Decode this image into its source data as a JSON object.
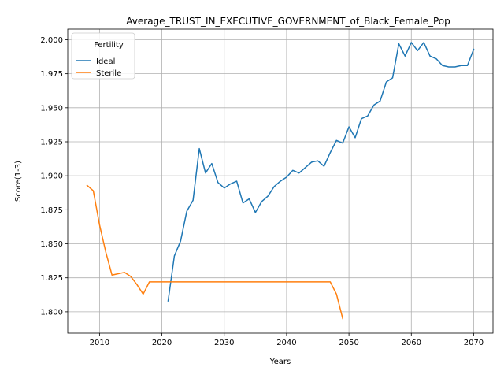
{
  "chart_data": {
    "type": "line",
    "title": "Average_TRUST_IN_EXECUTIVE_GOVERNMENT_of_Black_Female_Pop",
    "xlabel": "Years",
    "ylabel": "Score(1-3)",
    "xlim": [
      2004.9,
      2073.1
    ],
    "ylim": [
      1.7843,
      2.0078
    ],
    "xticks": [
      2010,
      2020,
      2030,
      2040,
      2050,
      2060,
      2070
    ],
    "yticks": [
      1.8,
      1.825,
      1.85,
      1.875,
      1.9,
      1.925,
      1.95,
      1.975,
      2.0
    ],
    "ytick_labels": [
      "1.800",
      "1.825",
      "1.850",
      "1.875",
      "1.900",
      "1.925",
      "1.950",
      "1.975",
      "2.000"
    ],
    "grid": true,
    "legend": {
      "title": "Fertility",
      "placement": "top-left"
    },
    "series": [
      {
        "name": "Ideal",
        "color": "#1f77b4",
        "x": [
          2021,
          2022,
          2023,
          2024,
          2025,
          2026,
          2027,
          2028,
          2029,
          2030,
          2031,
          2032,
          2033,
          2034,
          2035,
          2036,
          2037,
          2038,
          2039,
          2040,
          2041,
          2042,
          2043,
          2044,
          2045,
          2046,
          2047,
          2048,
          2049,
          2050,
          2051,
          2052,
          2053,
          2054,
          2055,
          2056,
          2057,
          2058,
          2059,
          2060,
          2061,
          2062,
          2063,
          2064,
          2065,
          2066,
          2067,
          2068,
          2069,
          2070
        ],
        "y": [
          1.808,
          1.841,
          1.852,
          1.874,
          1.882,
          1.92,
          1.902,
          1.909,
          1.895,
          1.891,
          1.894,
          1.896,
          1.88,
          1.883,
          1.873,
          1.881,
          1.885,
          1.892,
          1.896,
          1.899,
          1.904,
          1.902,
          1.906,
          1.91,
          1.911,
          1.907,
          1.917,
          1.926,
          1.924,
          1.936,
          1.928,
          1.942,
          1.944,
          1.952,
          1.955,
          1.969,
          1.972,
          1.997,
          1.988,
          1.998,
          1.992,
          1.998,
          1.988,
          1.986,
          1.981,
          1.98,
          1.98,
          1.981,
          1.981,
          1.993
        ]
      },
      {
        "name": "Sterile",
        "color": "#ff7f0e",
        "x": [
          2008,
          2009,
          2010,
          2011,
          2012,
          2013,
          2014,
          2015,
          2016,
          2017,
          2018,
          2019,
          2020,
          2025,
          2030,
          2035,
          2040,
          2045,
          2046,
          2047,
          2048,
          2049
        ],
        "y": [
          1.893,
          1.889,
          1.864,
          1.844,
          1.827,
          1.828,
          1.829,
          1.826,
          1.82,
          1.813,
          1.822,
          1.822,
          1.822,
          1.822,
          1.822,
          1.822,
          1.822,
          1.822,
          1.822,
          1.822,
          1.813,
          1.795
        ]
      }
    ]
  }
}
